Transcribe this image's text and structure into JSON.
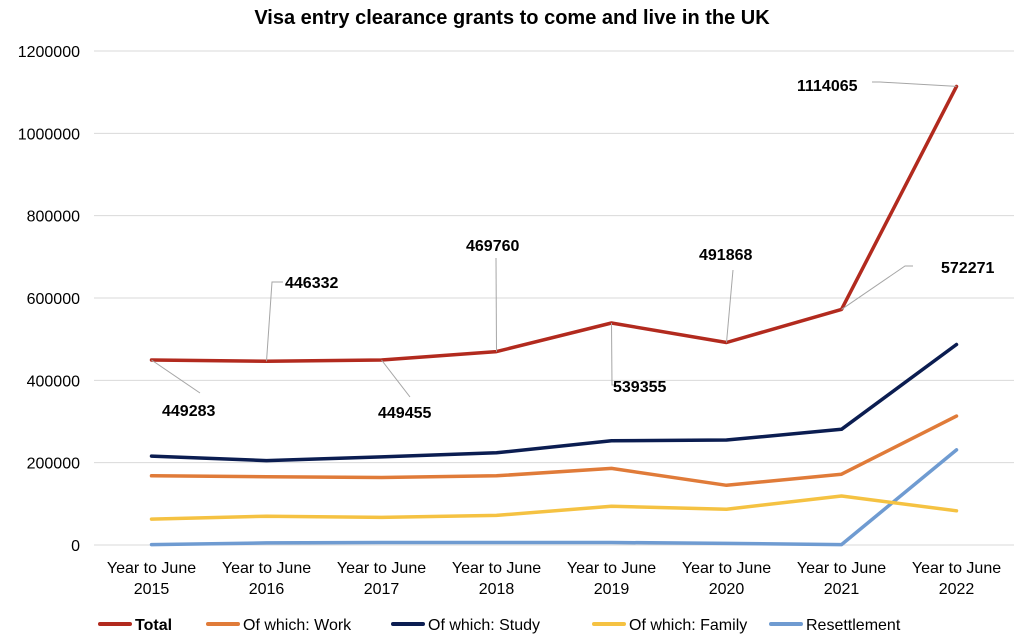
{
  "chart_data": {
    "type": "line",
    "title": "Visa entry clearance grants to come and live in the UK",
    "xlabel": "",
    "ylabel": "",
    "categories": [
      [
        "Year to June",
        "2015"
      ],
      [
        "Year to June",
        "2016"
      ],
      [
        "Year to June",
        "2017"
      ],
      [
        "Year to June",
        "2018"
      ],
      [
        "Year to June",
        "2019"
      ],
      [
        "Year to June",
        "2020"
      ],
      [
        "Year to June",
        "2021"
      ],
      [
        "Year to June",
        "2022"
      ]
    ],
    "ylim": [
      0,
      1200000
    ],
    "yticks": [
      0,
      200000,
      400000,
      600000,
      800000,
      1000000,
      1200000
    ],
    "grid": true,
    "legend_position": "bottom",
    "series": [
      {
        "name": "Total",
        "color": "#b22a1e",
        "bold": true,
        "values": [
          449283,
          446332,
          449455,
          469760,
          539355,
          491868,
          572271,
          1114065
        ]
      },
      {
        "name": "Of which: Work",
        "color": "#e07b39",
        "bold": false,
        "values": [
          168000,
          166000,
          164000,
          168000,
          186000,
          145000,
          172000,
          313000
        ]
      },
      {
        "name": "Of which: Study",
        "color": "#0b1d51",
        "bold": false,
        "values": [
          216000,
          205000,
          214000,
          224000,
          253000,
          255000,
          281000,
          487000
        ]
      },
      {
        "name": "Of which: Family",
        "color": "#f5c242",
        "bold": false,
        "values": [
          63000,
          70000,
          67000,
          72000,
          94000,
          87000,
          119000,
          83000
        ]
      },
      {
        "name": "Resettlement",
        "color": "#6f9bd1",
        "bold": false,
        "values": [
          1000,
          5000,
          6000,
          6000,
          6000,
          4000,
          1000,
          231000
        ]
      }
    ],
    "annotations": [
      {
        "series": 0,
        "index": 0,
        "text": "449283"
      },
      {
        "series": 0,
        "index": 1,
        "text": "446332"
      },
      {
        "series": 0,
        "index": 2,
        "text": "449455"
      },
      {
        "series": 0,
        "index": 3,
        "text": "469760"
      },
      {
        "series": 0,
        "index": 4,
        "text": "539355"
      },
      {
        "series": 0,
        "index": 5,
        "text": "491868"
      },
      {
        "series": 0,
        "index": 6,
        "text": "572271"
      },
      {
        "series": 0,
        "index": 7,
        "text": "1114065"
      }
    ]
  }
}
